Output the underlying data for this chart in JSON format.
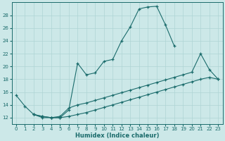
{
  "xlabel": "Humidex (Indice chaleur)",
  "bg_color": "#cce8e8",
  "line_color": "#1a6b6b",
  "grid_color": "#aed4d4",
  "xlim": [
    -0.5,
    23.5
  ],
  "ylim": [
    11.0,
    30.0
  ],
  "yticks": [
    12,
    14,
    16,
    18,
    20,
    22,
    24,
    26,
    28
  ],
  "xticks": [
    0,
    1,
    2,
    3,
    4,
    5,
    6,
    7,
    8,
    9,
    10,
    11,
    12,
    13,
    14,
    15,
    16,
    17,
    18,
    19,
    20,
    21,
    22,
    23
  ],
  "line1_x": [
    0,
    1,
    2,
    3,
    4,
    5,
    6,
    7,
    8,
    9,
    10,
    11,
    12,
    13,
    14,
    15,
    16,
    17,
    18
  ],
  "line1_y": [
    15.5,
    13.8,
    12.5,
    12.0,
    12.0,
    12.0,
    13.2,
    20.5,
    18.7,
    19.0,
    20.8,
    21.1,
    24.0,
    26.2,
    29.0,
    29.3,
    29.4,
    26.5,
    23.2
  ],
  "line2_x": [
    2,
    3,
    4,
    5,
    6,
    7,
    8,
    9,
    10,
    11,
    12,
    13,
    14,
    15,
    16,
    17,
    18,
    19,
    20,
    21,
    22,
    23
  ],
  "line2_y": [
    12.5,
    12.2,
    12.0,
    12.2,
    13.5,
    14.0,
    14.3,
    14.7,
    15.1,
    15.5,
    15.9,
    16.3,
    16.7,
    17.1,
    17.5,
    17.9,
    18.3,
    18.7,
    19.1,
    22.0,
    19.5,
    18.0
  ],
  "line3_x": [
    2,
    3,
    4,
    5,
    6,
    7,
    8,
    9,
    10,
    11,
    12,
    13,
    14,
    15,
    16,
    17,
    18,
    19,
    20,
    21,
    22,
    23
  ],
  "line3_y": [
    12.5,
    12.2,
    12.0,
    12.0,
    12.2,
    12.5,
    12.8,
    13.2,
    13.6,
    14.0,
    14.4,
    14.8,
    15.2,
    15.6,
    16.0,
    16.4,
    16.8,
    17.2,
    17.6,
    18.0,
    18.3,
    18.0
  ]
}
